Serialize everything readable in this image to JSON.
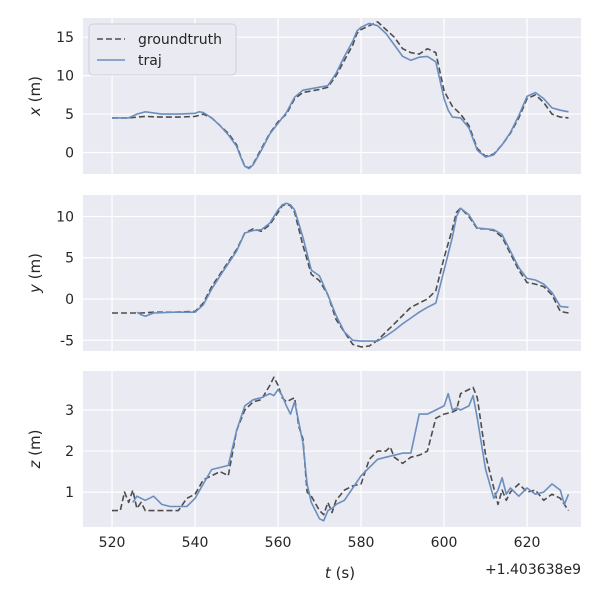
{
  "figure": {
    "background": "#ffffff",
    "panel_background": "#eaeaf2",
    "grid_color": "#ffffff",
    "offset_label": "+1.403638e9"
  },
  "legend": {
    "entries": [
      {
        "label": "groundtruth",
        "color": "#4d4d4d",
        "style": "dashed"
      },
      {
        "label": "traj",
        "color": "#6c8ebf",
        "style": "solid"
      }
    ],
    "placement": "top-left"
  },
  "chart_data": [
    {
      "type": "line",
      "xlabel": "",
      "ylabel": "x (m)",
      "ylabel_var": "x",
      "ylabel_unit": " (m)",
      "xlim": [
        513,
        633
      ],
      "ylim": [
        -2.8,
        17.5
      ],
      "yticks": [
        0,
        5,
        10,
        15
      ],
      "xticks": [
        520,
        540,
        560,
        580,
        600,
        620
      ],
      "show_xtick_labels": false,
      "grid": true,
      "series": [
        {
          "name": "groundtruth",
          "x": [
            520,
            524,
            528,
            532,
            536,
            540,
            542,
            544,
            546,
            548,
            550,
            551,
            552,
            553,
            554,
            556,
            558,
            560,
            562,
            564,
            566,
            568,
            570,
            572,
            574,
            576,
            578,
            579,
            580,
            582,
            584,
            586,
            588,
            590,
            592,
            594,
            596,
            598,
            600,
            602,
            604,
            606,
            608,
            610,
            612,
            614,
            616,
            618,
            620,
            622,
            624,
            626,
            628,
            630
          ],
          "values": [
            4.5,
            4.5,
            4.7,
            4.6,
            4.6,
            4.7,
            5.0,
            4.5,
            3.5,
            2.5,
            1.0,
            -0.5,
            -1.8,
            -2.0,
            -1.5,
            0.5,
            2.5,
            4.0,
            5.0,
            7.0,
            7.8,
            8.0,
            8.2,
            8.5,
            10.0,
            12.0,
            14.0,
            15.5,
            16.0,
            16.5,
            17.0,
            16.0,
            15.0,
            13.5,
            13.0,
            12.8,
            13.5,
            13.0,
            8.0,
            6.0,
            5.0,
            3.5,
            0.5,
            -0.5,
            -0.2,
            1.0,
            2.5,
            4.5,
            7.0,
            7.5,
            6.5,
            5.0,
            4.6,
            4.5
          ]
        },
        {
          "name": "traj",
          "x": [
            520,
            524,
            526,
            528,
            532,
            536,
            540,
            541,
            542,
            544,
            546,
            548,
            550,
            551,
            552,
            553,
            554,
            556,
            558,
            560,
            562,
            564,
            566,
            568,
            570,
            572,
            574,
            576,
            578,
            579,
            580,
            582,
            584,
            586,
            588,
            590,
            592,
            594,
            596,
            598,
            600,
            601,
            602,
            604,
            606,
            608,
            610,
            612,
            614,
            616,
            618,
            620,
            622,
            624,
            626,
            628,
            630
          ],
          "values": [
            4.5,
            4.5,
            5.0,
            5.3,
            5.0,
            5.0,
            5.1,
            5.3,
            5.2,
            4.5,
            3.5,
            2.3,
            0.8,
            -0.6,
            -1.8,
            -2.1,
            -1.6,
            0.3,
            2.4,
            3.8,
            5.2,
            7.2,
            8.1,
            8.3,
            8.5,
            8.7,
            10.3,
            12.5,
            14.5,
            15.8,
            16.3,
            16.8,
            16.5,
            15.5,
            14.0,
            12.5,
            12.0,
            12.4,
            12.5,
            11.8,
            7.0,
            5.5,
            4.6,
            4.5,
            3.2,
            0.3,
            -0.6,
            -0.3,
            1.0,
            2.6,
            4.8,
            7.3,
            7.8,
            7.0,
            5.8,
            5.5,
            5.3
          ]
        }
      ]
    },
    {
      "type": "line",
      "xlabel": "",
      "ylabel": "y (m)",
      "ylabel_var": "y",
      "ylabel_unit": " (m)",
      "xlim": [
        513,
        633
      ],
      "ylim": [
        -6.3,
        12.6
      ],
      "yticks": [
        -5,
        0,
        5,
        10
      ],
      "xticks": [
        520,
        540,
        560,
        580,
        600,
        620
      ],
      "show_xtick_labels": false,
      "grid": true,
      "series": [
        {
          "name": "groundtruth",
          "x": [
            520,
            524,
            527,
            530,
            535,
            540,
            542,
            544,
            546,
            548,
            550,
            552,
            554,
            556,
            558,
            560,
            561,
            562,
            563,
            564,
            566,
            568,
            570,
            572,
            574,
            576,
            578,
            580,
            582,
            584,
            586,
            588,
            590,
            592,
            594,
            596,
            598,
            600,
            602,
            603,
            604,
            606,
            608,
            610,
            612,
            614,
            616,
            618,
            620,
            622,
            624,
            626,
            628,
            630
          ],
          "values": [
            -1.7,
            -1.7,
            -1.7,
            -1.6,
            -1.6,
            -1.5,
            -0.5,
            1.5,
            3.0,
            4.5,
            6.0,
            8.0,
            8.5,
            8.2,
            9.0,
            10.5,
            11.3,
            11.5,
            11.3,
            10.5,
            6.5,
            3.0,
            2.2,
            0.5,
            -2.5,
            -4.0,
            -5.5,
            -5.8,
            -5.7,
            -5.0,
            -4.0,
            -3.0,
            -2.0,
            -1.0,
            -0.5,
            0.0,
            1.0,
            5.0,
            8.5,
            10.5,
            11.0,
            10.0,
            8.5,
            8.5,
            8.3,
            7.5,
            5.5,
            3.5,
            2.0,
            1.8,
            1.5,
            0.5,
            -1.5,
            -1.7
          ]
        },
        {
          "name": "traj",
          "x": [
            526,
            527,
            528,
            530,
            535,
            540,
            542,
            544,
            546,
            548,
            550,
            552,
            554,
            556,
            558,
            560,
            561,
            562,
            563,
            564,
            566,
            568,
            570,
            572,
            574,
            576,
            578,
            580,
            582,
            584,
            586,
            588,
            590,
            592,
            594,
            596,
            598,
            600,
            602,
            603,
            604,
            606,
            608,
            610,
            612,
            614,
            616,
            618,
            620,
            622,
            624,
            626,
            628,
            630
          ],
          "values": [
            -1.6,
            -1.9,
            -2.1,
            -1.7,
            -1.6,
            -1.6,
            -0.7,
            1.2,
            2.8,
            4.3,
            5.8,
            8.0,
            8.3,
            8.4,
            9.2,
            10.8,
            11.4,
            11.6,
            11.4,
            10.8,
            7.5,
            3.5,
            2.8,
            0.5,
            -2.0,
            -4.0,
            -5.0,
            -5.1,
            -5.1,
            -5.1,
            -4.5,
            -3.8,
            -3.0,
            -2.3,
            -1.6,
            -1.0,
            -0.5,
            3.5,
            7.5,
            10.0,
            11.0,
            10.2,
            8.6,
            8.5,
            8.4,
            7.8,
            5.8,
            3.8,
            2.5,
            2.3,
            1.8,
            0.8,
            -0.9,
            -1.0
          ]
        }
      ]
    },
    {
      "type": "line",
      "xlabel": "t (s)",
      "xlabel_var": "t",
      "xlabel_unit": " (s)",
      "ylabel": "z (m)",
      "ylabel_var": "z",
      "ylabel_unit": " (m)",
      "xlim": [
        513,
        633
      ],
      "ylim": [
        0.15,
        3.95
      ],
      "yticks": [
        1,
        2,
        3
      ],
      "xticks": [
        520,
        540,
        560,
        580,
        600,
        620
      ],
      "show_xtick_labels": true,
      "grid": true,
      "series": [
        {
          "name": "groundtruth",
          "x": [
            520,
            522,
            523,
            524,
            525,
            526,
            527,
            528,
            530,
            532,
            534,
            536,
            538,
            540,
            542,
            544,
            546,
            548,
            550,
            552,
            554,
            556,
            558,
            559,
            560,
            561,
            562,
            564,
            565,
            566,
            567,
            568,
            570,
            571,
            572,
            573,
            574,
            576,
            578,
            580,
            582,
            583,
            584,
            586,
            587,
            588,
            590,
            592,
            594,
            596,
            598,
            600,
            602,
            603,
            604,
            606,
            607,
            608,
            610,
            612,
            613,
            614,
            615,
            616,
            618,
            620,
            622,
            624,
            626,
            628,
            630
          ],
          "values": [
            0.55,
            0.55,
            1.0,
            0.75,
            1.05,
            0.6,
            0.75,
            0.55,
            0.55,
            0.55,
            0.55,
            0.55,
            0.85,
            0.95,
            1.3,
            1.4,
            1.5,
            1.4,
            2.5,
            3.0,
            3.2,
            3.25,
            3.6,
            3.8,
            3.6,
            3.3,
            3.2,
            3.3,
            2.6,
            2.3,
            1.0,
            0.9,
            0.55,
            0.45,
            0.75,
            0.5,
            0.8,
            1.05,
            1.15,
            1.2,
            1.8,
            1.9,
            2.0,
            2.0,
            2.1,
            1.85,
            1.7,
            1.85,
            1.9,
            2.0,
            2.8,
            2.9,
            2.95,
            3.0,
            3.4,
            3.5,
            3.55,
            3.3,
            1.9,
            1.1,
            0.7,
            1.05,
            0.8,
            1.0,
            1.2,
            1.0,
            1.05,
            0.8,
            0.95,
            0.85,
            0.55
          ]
        },
        {
          "name": "traj",
          "x": [
            525,
            526,
            527,
            528,
            529,
            530,
            532,
            534,
            536,
            538,
            540,
            542,
            544,
            546,
            548,
            550,
            552,
            554,
            556,
            558,
            559,
            560,
            561,
            562,
            563,
            564,
            565,
            566,
            567,
            568,
            570,
            571,
            572,
            573,
            574,
            576,
            578,
            580,
            582,
            584,
            586,
            588,
            590,
            592,
            594,
            596,
            598,
            600,
            601,
            602,
            603,
            604,
            606,
            607,
            608,
            610,
            612,
            613,
            614,
            615,
            616,
            618,
            620,
            622,
            624,
            626,
            628,
            629,
            630
          ],
          "values": [
            0.75,
            0.9,
            0.85,
            0.8,
            0.85,
            0.9,
            0.7,
            0.65,
            0.65,
            0.65,
            0.85,
            1.2,
            1.55,
            1.6,
            1.65,
            2.5,
            3.1,
            3.25,
            3.3,
            3.4,
            3.35,
            3.5,
            3.35,
            3.1,
            2.9,
            3.2,
            2.7,
            2.2,
            1.2,
            0.75,
            0.35,
            0.3,
            0.55,
            0.6,
            0.7,
            0.8,
            1.1,
            1.4,
            1.6,
            1.8,
            1.85,
            1.9,
            1.95,
            1.95,
            2.9,
            2.9,
            3.0,
            3.1,
            3.4,
            3.0,
            3.05,
            3.0,
            3.1,
            3.35,
            2.8,
            1.55,
            0.85,
            1.05,
            1.35,
            0.95,
            1.1,
            0.9,
            1.1,
            0.95,
            1.0,
            1.2,
            1.05,
            0.7,
            0.95
          ]
        }
      ]
    }
  ]
}
